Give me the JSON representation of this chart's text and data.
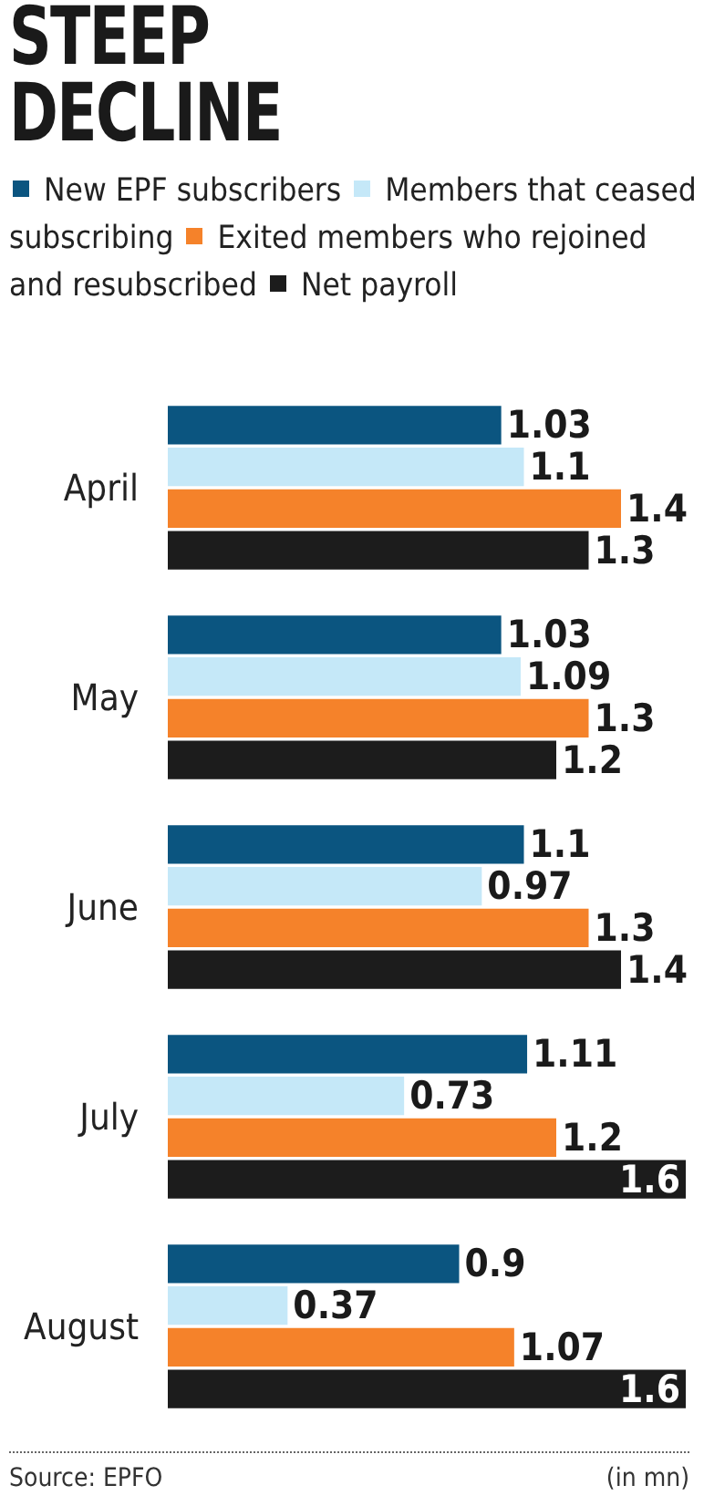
{
  "chart_data": {
    "type": "bar",
    "orientation": "horizontal",
    "title": "STEEP\nDECLINE",
    "categories": [
      "April",
      "May",
      "June",
      "July",
      "August"
    ],
    "series": [
      {
        "name": "New EPF subscribers",
        "color": "#0b5580",
        "values": [
          1.03,
          1.03,
          1.1,
          1.11,
          0.9
        ]
      },
      {
        "name": "Members that ceased subscribing",
        "color": "#c5e8f8",
        "values": [
          1.1,
          1.09,
          0.97,
          0.73,
          0.37
        ]
      },
      {
        "name": "Exited members who rejoined and resubscribed",
        "color": "#f5822a",
        "values": [
          1.4,
          1.3,
          1.3,
          1.2,
          1.07
        ]
      },
      {
        "name": "Net payroll",
        "color": "#1c1c1c",
        "values": [
          1.3,
          1.2,
          1.4,
          1.6,
          1.6
        ]
      }
    ],
    "data_labels": true,
    "legend": "top",
    "annotations": [
      "Source: EPFO",
      "(in mn)"
    ]
  }
}
